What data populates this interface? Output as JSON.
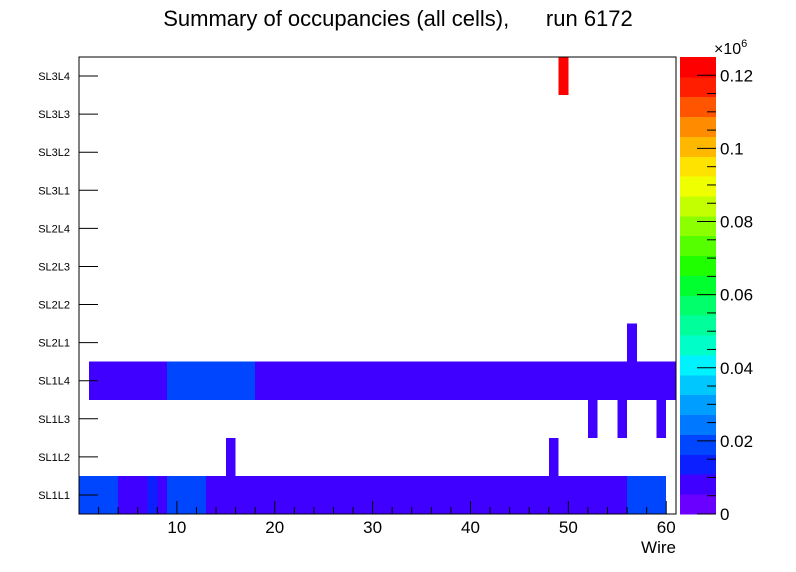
{
  "chart_data": {
    "type": "heatmap",
    "title": "Summary of occupancies (all cells),      run 6172",
    "xlabel": "Wire",
    "ylabel": "",
    "x_range": [
      0,
      61
    ],
    "x_ticks": [
      10,
      20,
      30,
      40,
      50,
      60
    ],
    "y_categories": [
      "SL1L1",
      "SL1L2",
      "SL1L3",
      "SL1L4",
      "SL2L1",
      "SL2L2",
      "SL2L3",
      "SL2L4",
      "SL3L1",
      "SL3L2",
      "SL3L3",
      "SL3L4"
    ],
    "z_range": [
      0,
      0.125
    ],
    "z_multiplier": "×10",
    "z_exponent": "6",
    "z_ticks": [
      {
        "value": 0,
        "label": "0"
      },
      {
        "value": 0.02,
        "label": "0.02"
      },
      {
        "value": 0.04,
        "label": "0.04"
      },
      {
        "value": 0.06,
        "label": "0.06"
      },
      {
        "value": 0.08,
        "label": "0.08"
      },
      {
        "value": 0.1,
        "label": "0.1"
      },
      {
        "value": 0.12,
        "label": "0.12"
      }
    ],
    "palette": [
      "#6a00ff",
      "#4000ff",
      "#0b1fff",
      "#0046ff",
      "#0078ff",
      "#009fff",
      "#00c8ff",
      "#00f2ff",
      "#00ffc8",
      "#00ff9a",
      "#00ff6a",
      "#00ff2e",
      "#20ff00",
      "#55ff00",
      "#8cff00",
      "#c3ff00",
      "#f0ff00",
      "#ffe300",
      "#ffb800",
      "#ff8c00",
      "#ff5400",
      "#ff1f00",
      "#ff0000"
    ],
    "cells": [
      {
        "layer": "SL1L1",
        "x0": 0,
        "x1": 4,
        "z": 0.018
      },
      {
        "layer": "SL1L1",
        "x0": 4,
        "x1": 7,
        "z": 0.009
      },
      {
        "layer": "SL1L1",
        "x0": 7,
        "x1": 8,
        "z": 0.016
      },
      {
        "layer": "SL1L1",
        "x0": 8,
        "x1": 9,
        "z": 0.009
      },
      {
        "layer": "SL1L1",
        "x0": 9,
        "x1": 13,
        "z": 0.018
      },
      {
        "layer": "SL1L1",
        "x0": 13,
        "x1": 56,
        "z": 0.01
      },
      {
        "layer": "SL1L1",
        "x0": 56,
        "x1": 60,
        "z": 0.018
      },
      {
        "layer": "SL1L2",
        "x0": 15,
        "x1": 16,
        "z": 0.006
      },
      {
        "layer": "SL1L2",
        "x0": 48,
        "x1": 49,
        "z": 0.006
      },
      {
        "layer": "SL1L3",
        "x0": 52,
        "x1": 53,
        "z": 0.006
      },
      {
        "layer": "SL1L3",
        "x0": 55,
        "x1": 56,
        "z": 0.006
      },
      {
        "layer": "SL1L3",
        "x0": 59,
        "x1": 60,
        "z": 0.006
      },
      {
        "layer": "SL1L4",
        "x0": 1,
        "x1": 9,
        "z": 0.01
      },
      {
        "layer": "SL1L4",
        "x0": 9,
        "x1": 18,
        "z": 0.018
      },
      {
        "layer": "SL1L4",
        "x0": 18,
        "x1": 54,
        "z": 0.01
      },
      {
        "layer": "SL1L4",
        "x0": 54,
        "x1": 55,
        "z": 0.006
      },
      {
        "layer": "SL1L4",
        "x0": 55,
        "x1": 61,
        "z": 0.01
      },
      {
        "layer": "SL2L1",
        "x0": 56,
        "x1": 57,
        "z": 0.006
      },
      {
        "layer": "SL3L4",
        "x0": 49,
        "x1": 50,
        "z": 0.125
      }
    ]
  }
}
